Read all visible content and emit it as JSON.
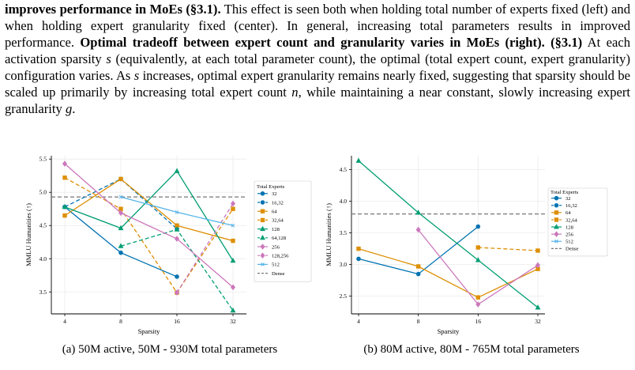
{
  "paragraph": [
    {
      "text": "improves performance in MoEs (§3.1).",
      "bold": true
    },
    {
      "text": " This effect is seen both when holding total number of experts fixed (left) and when holding expert granularity fixed (center). In general, increasing total parameters results in improved performance. "
    },
    {
      "text": "Optimal tradeoff between expert count and granularity varies in MoEs (right). (§3.1)",
      "bold": true
    },
    {
      "text": " At each activation sparsity "
    },
    {
      "text": "s",
      "italic": true
    },
    {
      "text": " (equivalently, at each total parameter count), the optimal (total expert count, expert granularity) configuration varies. As "
    },
    {
      "text": "s",
      "italic": true
    },
    {
      "text": " increases, optimal expert granularity remains nearly fixed, suggesting that sparsity should be scaled up primarily by increasing total expert count "
    },
    {
      "text": "n",
      "italic": true
    },
    {
      "text": ", while maintaining a near constant, slowly increasing expert granularity "
    },
    {
      "text": "g",
      "italic": true
    },
    {
      "text": "."
    }
  ],
  "chart_data": [
    {
      "type": "line",
      "caption": "(a) 50M active, 50M - 930M total parameters",
      "x_label": "Sparsity",
      "y_label": "MMLU Humanities (↑)",
      "categories": [
        "4",
        "8",
        "16",
        "32"
      ],
      "ylim": [
        3.17,
        5.55
      ],
      "yticks": [
        3.5,
        {
          "value": 4,
          "label": "4.0"
        },
        4.5,
        {
          "value": 5,
          "label": "5.0"
        },
        5.5
      ],
      "grid": true,
      "legend_title": "Total Experts",
      "series": [
        {
          "name": "32",
          "color": "#0173b2",
          "marker": "circle",
          "values": [
            4.78,
            4.09,
            3.73,
            null
          ]
        },
        {
          "name": "16,32",
          "color": "#0173b2",
          "marker": "circle",
          "dashed": true,
          "values": [
            4.78,
            5.2,
            4.45,
            null
          ]
        },
        {
          "name": "64",
          "color": "#de8f05",
          "marker": "square",
          "values": [
            4.65,
            5.2,
            4.5,
            4.27
          ]
        },
        {
          "name": "32,64",
          "color": "#de8f05",
          "marker": "square",
          "dashed": true,
          "values": [
            5.22,
            4.75,
            3.49,
            4.75
          ]
        },
        {
          "name": "128",
          "color": "#029e73",
          "marker": "triangle",
          "values": [
            4.78,
            4.46,
            5.32,
            3.97
          ]
        },
        {
          "name": "64,128",
          "color": "#029e73",
          "marker": "triangle",
          "dashed": true,
          "values": [
            null,
            4.19,
            4.44,
            3.22
          ]
        },
        {
          "name": "256",
          "color": "#cc78bc",
          "marker": "diamond",
          "values": [
            5.43,
            4.69,
            4.3,
            3.57
          ]
        },
        {
          "name": "128,256",
          "color": "#cc78bc",
          "marker": "diamond",
          "dashed": true,
          "values": [
            null,
            null,
            3.49,
            4.83
          ]
        },
        {
          "name": "512",
          "color": "#56b4e9",
          "marker": "x",
          "values": [
            null,
            4.93,
            4.7,
            4.5
          ]
        }
      ],
      "dense": {
        "name": "Dense",
        "value": 4.93,
        "color": "#777777"
      }
    },
    {
      "type": "line",
      "caption": "(b) 80M active, 80M - 765M total parameters",
      "x_label": "Sparsity",
      "y_label": "MMLU Humanities (↑)",
      "categories": [
        "4",
        "8",
        "16",
        "32"
      ],
      "ylim": [
        2.22,
        4.72
      ],
      "yticks": [
        2.5,
        {
          "value": 3,
          "label": "3.0"
        },
        3.5,
        {
          "value": 4,
          "label": "4.0"
        },
        4.5
      ],
      "grid": true,
      "legend_title": "Total Experts",
      "series": [
        {
          "name": "32",
          "color": "#0173b2",
          "marker": "circle",
          "values": [
            3.09,
            2.85,
            3.6,
            null
          ]
        },
        {
          "name": "16,32",
          "color": "#0173b2",
          "marker": "circle",
          "dashed": true,
          "values": [
            null,
            null,
            null,
            null
          ]
        },
        {
          "name": "64",
          "color": "#de8f05",
          "marker": "square",
          "values": [
            3.25,
            2.97,
            2.48,
            2.93
          ]
        },
        {
          "name": "32,64",
          "color": "#de8f05",
          "marker": "square",
          "dashed": true,
          "values": [
            null,
            null,
            3.27,
            3.22
          ]
        },
        {
          "name": "128",
          "color": "#029e73",
          "marker": "triangle",
          "values": [
            4.64,
            3.82,
            3.07,
            2.32
          ]
        },
        {
          "name": "256",
          "color": "#cc78bc",
          "marker": "diamond",
          "values": [
            null,
            3.55,
            2.37,
            2.99
          ]
        },
        {
          "name": "512",
          "color": "#56b4e9",
          "marker": "x",
          "values": [
            null,
            null,
            null,
            null
          ]
        }
      ],
      "dense": {
        "name": "Dense",
        "value": 3.8,
        "color": "#777777"
      }
    }
  ]
}
